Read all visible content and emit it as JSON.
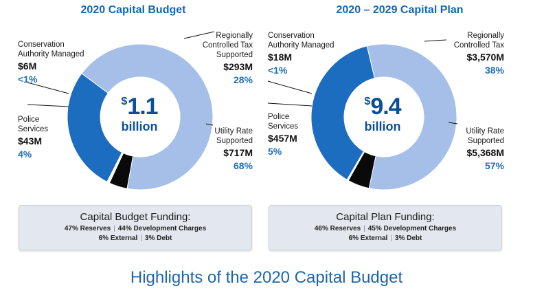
{
  "chart_data": [
    {
      "type": "pie",
      "title": "2020 Capital Budget",
      "center_value": "1.1",
      "center_unit": "billion",
      "slices": [
        {
          "label": "Regionally Controlled Tax Supported",
          "amount": "$293M",
          "percent_label": "28%",
          "value": 293,
          "color": "#1c6cbf"
        },
        {
          "label": "Utility Rate Supported",
          "amount": "$717M",
          "percent_label": "68%",
          "value": 717,
          "color": "#a6bfe9"
        },
        {
          "label": "Police Services",
          "amount": "$43M",
          "percent_label": "4%",
          "value": 43,
          "color": "#0a0a0a"
        },
        {
          "label": "Conservation Authority Managed",
          "amount": "$6M",
          "percent_label": "<1%",
          "value": 6,
          "color": "#ffffff"
        }
      ],
      "funding": {
        "title": "Capital Budget Funding:",
        "line1": [
          "47% Reserves",
          "44% Development Charges"
        ],
        "line2": [
          "6% External",
          "3% Debt"
        ]
      }
    },
    {
      "type": "pie",
      "title": "2020 – 2029 Capital Plan",
      "center_value": "9.4",
      "center_unit": "billion",
      "slices": [
        {
          "label": "Regionally Controlled Tax",
          "amount": "$3,570M",
          "percent_label": "38%",
          "value": 3570,
          "color": "#1c6cbf"
        },
        {
          "label": "Utility Rate Supported",
          "amount": "$5,368M",
          "percent_label": "57%",
          "value": 5368,
          "color": "#a6bfe9"
        },
        {
          "label": "Police Services",
          "amount": "$457M",
          "percent_label": "5%",
          "value": 457,
          "color": "#0a0a0a"
        },
        {
          "label": "Conservation Authority Managed",
          "amount": "$18M",
          "percent_label": "<1%",
          "value": 18,
          "color": "#ffffff"
        }
      ],
      "funding": {
        "title": "Capital Plan Funding:",
        "line1": [
          "46% Reserves",
          "45% Development Charges"
        ],
        "line2": [
          "6% External",
          "3% Debt"
        ]
      }
    }
  ],
  "footer_title": "Highlights of the 2020 Capital Budget"
}
